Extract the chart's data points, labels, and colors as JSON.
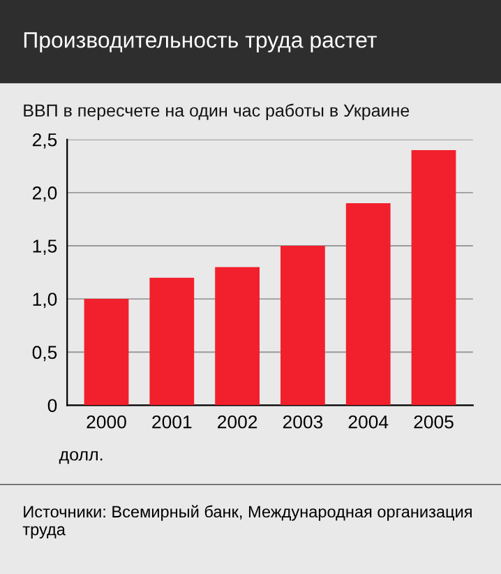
{
  "chart_data": {
    "type": "bar",
    "title": "Производительность труда растет",
    "subtitle": "ВВП в пересчете на один час работы в Украине",
    "categories": [
      "2000",
      "2001",
      "2002",
      "2003",
      "2004",
      "2005"
    ],
    "values": [
      1.0,
      1.2,
      1.3,
      1.5,
      1.9,
      2.4
    ],
    "color": "#f2202c",
    "ylim": [
      0,
      2.5
    ],
    "yticks": [
      0,
      {
        "value": 0.5,
        "label": "0,5"
      },
      {
        "value": 1.0,
        "label": "1,0"
      },
      {
        "value": 1.5,
        "label": "1,5"
      },
      {
        "value": 2.0,
        "label": "2,0"
      },
      {
        "value": 2.5,
        "label": "2,5"
      }
    ],
    "grid": "y",
    "annotations": [
      "долл.",
      "Источники: Всемирный банк, Международная организация труда"
    ]
  }
}
